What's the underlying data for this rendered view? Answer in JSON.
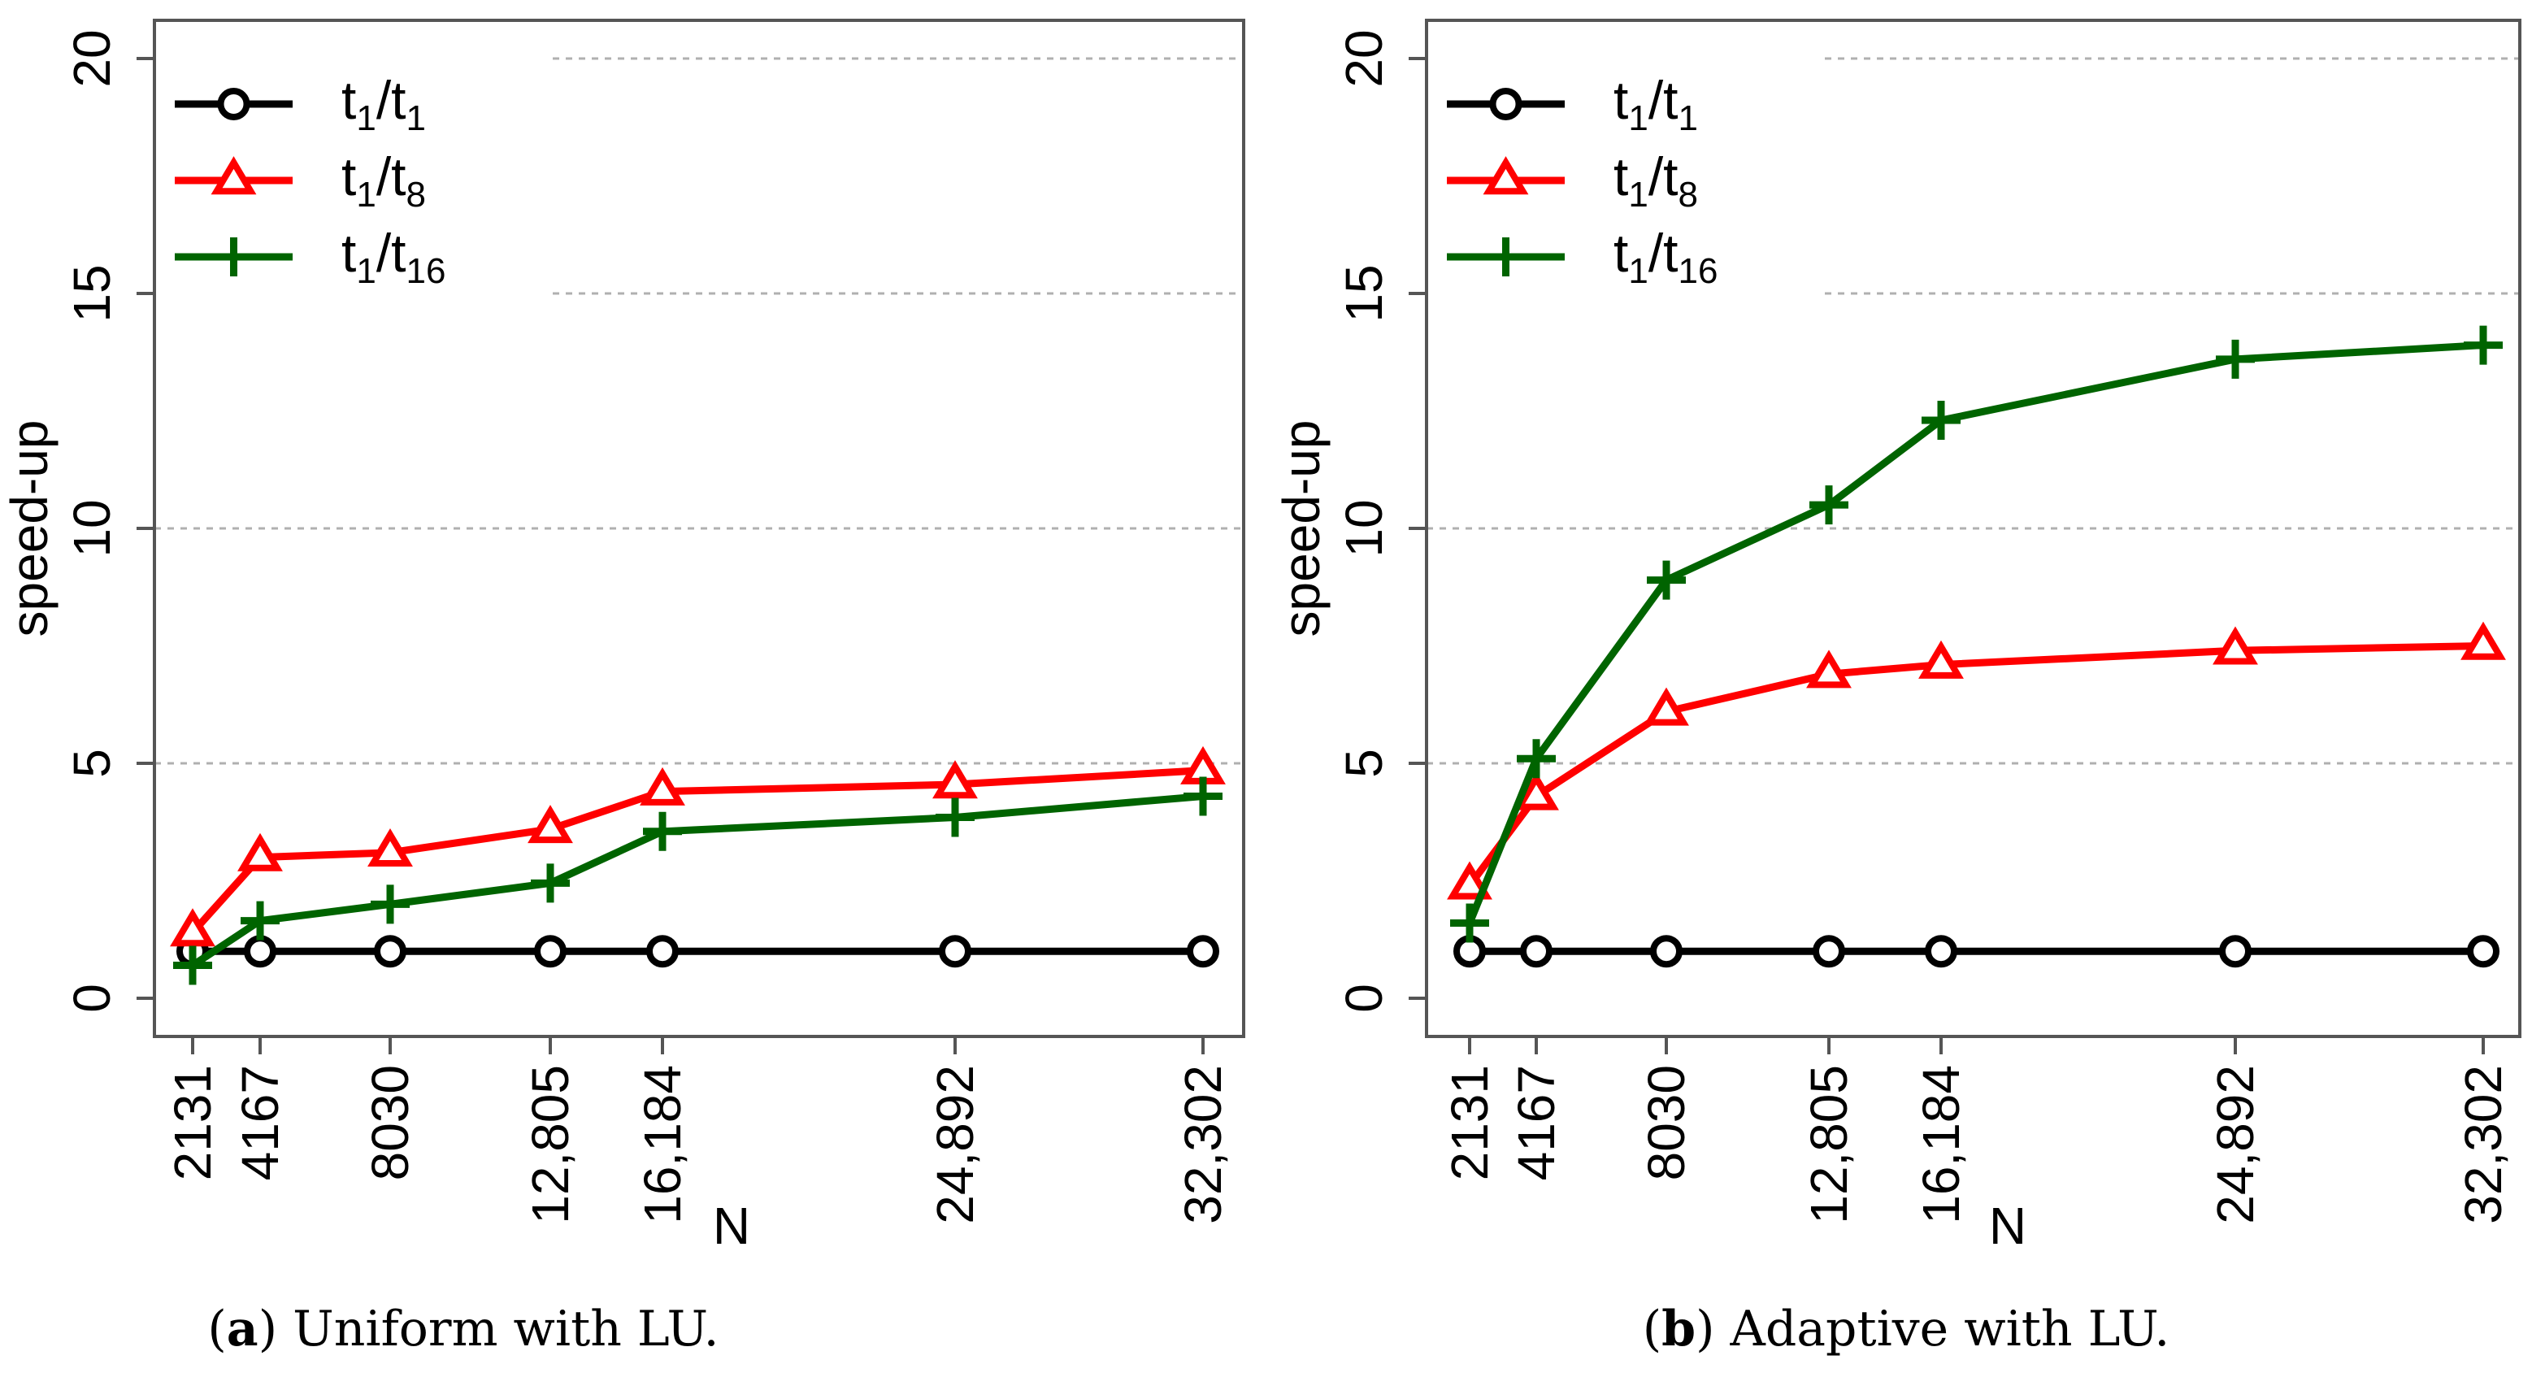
{
  "figure": {
    "captions": [
      {
        "letter": "a",
        "text": "Uniform with LU."
      },
      {
        "letter": "b",
        "text": "Adaptive with LU."
      }
    ]
  },
  "chart_data": [
    {
      "type": "line",
      "title": "",
      "xlabel": "N",
      "ylabel": "speed-up",
      "x": [
        2131,
        4167,
        8030,
        12805,
        16184,
        24892,
        32302
      ],
      "x_tick_labels": [
        "2131",
        "4167",
        "8030",
        "12,805",
        "16,184",
        "24,892",
        "32,302"
      ],
      "ylim": [
        0,
        20
      ],
      "y_ticks": [
        0,
        5,
        10,
        15,
        20
      ],
      "grid": "horizontal dotted at y ticks",
      "legend_position": "top-left",
      "series": [
        {
          "name": "t1/t1",
          "label_main": "t",
          "sub1": "1",
          "sep": "/",
          "label_den": "t",
          "sub2": "1",
          "color": "#000000",
          "marker": "circle",
          "values": [
            1,
            1,
            1,
            1,
            1,
            1,
            1
          ]
        },
        {
          "name": "t1/t8",
          "label_main": "t",
          "sub1": "1",
          "sep": "/",
          "label_den": "t",
          "sub2": "8",
          "color": "#ff0000",
          "marker": "triangle",
          "values": [
            1.4,
            3.0,
            3.1,
            3.6,
            4.4,
            4.55,
            4.85
          ]
        },
        {
          "name": "t1/t16",
          "label_main": "t",
          "sub1": "1",
          "sep": "/",
          "label_den": "t",
          "sub2": "16",
          "color": "#006400",
          "marker": "plus",
          "values": [
            0.7,
            1.65,
            2.0,
            2.45,
            3.55,
            3.85,
            4.3
          ]
        }
      ]
    },
    {
      "type": "line",
      "title": "",
      "xlabel": "N",
      "ylabel": "speed-up",
      "x": [
        2131,
        4167,
        8030,
        12805,
        16184,
        24892,
        32302
      ],
      "x_tick_labels": [
        "2131",
        "4167",
        "8030",
        "12,805",
        "16,184",
        "24,892",
        "32,302"
      ],
      "ylim": [
        0,
        20
      ],
      "y_ticks": [
        0,
        5,
        10,
        15,
        20
      ],
      "grid": "horizontal dotted at y ticks",
      "legend_position": "top-left",
      "series": [
        {
          "name": "t1/t1",
          "label_main": "t",
          "sub1": "1",
          "sep": "/",
          "label_den": "t",
          "sub2": "1",
          "color": "#000000",
          "marker": "circle",
          "values": [
            1,
            1,
            1,
            1,
            1,
            1,
            1
          ]
        },
        {
          "name": "t1/t8",
          "label_main": "t",
          "sub1": "1",
          "sep": "/",
          "label_den": "t",
          "sub2": "8",
          "color": "#ff0000",
          "marker": "triangle",
          "values": [
            2.4,
            4.3,
            6.1,
            6.9,
            7.1,
            7.4,
            7.5
          ]
        },
        {
          "name": "t1/t16",
          "label_main": "t",
          "sub1": "1",
          "sep": "/",
          "label_den": "t",
          "sub2": "16",
          "color": "#006400",
          "marker": "plus",
          "values": [
            1.6,
            5.1,
            8.9,
            10.5,
            12.3,
            13.6,
            13.9
          ]
        }
      ]
    }
  ]
}
